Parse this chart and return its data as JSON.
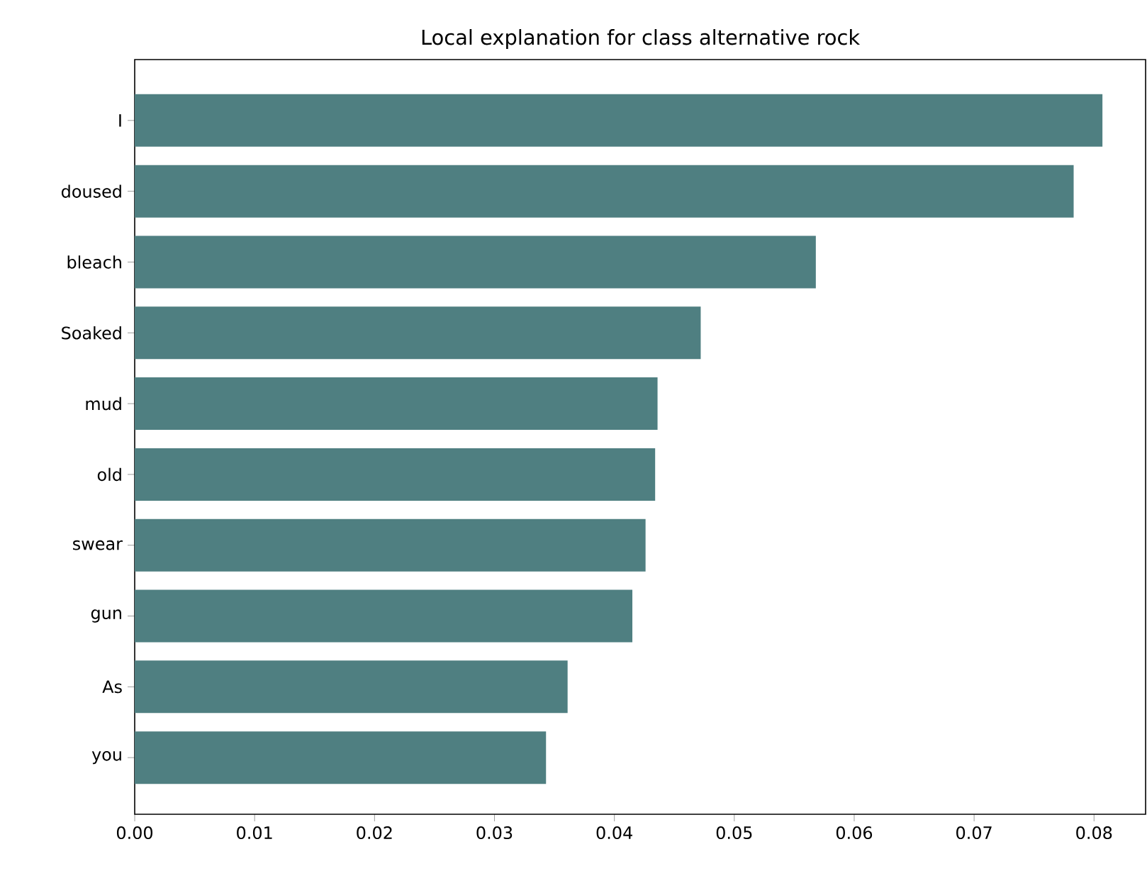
{
  "chart_data": {
    "type": "bar",
    "orientation": "horizontal",
    "title": "Local explanation for class alternative rock",
    "categories": [
      "I",
      "doused",
      "bleach",
      "Soaked",
      "mud",
      "old",
      "swear",
      "gun",
      "As",
      "you"
    ],
    "values": [
      0.0807,
      0.0783,
      0.0568,
      0.0472,
      0.0436,
      0.0434,
      0.0426,
      0.0415,
      0.0361,
      0.0343
    ],
    "color": "#4f7f81",
    "xlim": [
      0,
      0.0843
    ],
    "xticks": [
      {
        "value": 0,
        "label": "0.00"
      },
      {
        "value": 0.01,
        "label": "0.01"
      },
      {
        "value": 0.02,
        "label": "0.02"
      },
      {
        "value": 0.03,
        "label": "0.03"
      },
      {
        "value": 0.04,
        "label": "0.04"
      },
      {
        "value": 0.05,
        "label": "0.05"
      },
      {
        "value": 0.06,
        "label": "0.06"
      },
      {
        "value": 0.07,
        "label": "0.07"
      },
      {
        "value": 0.08,
        "label": "0.08"
      }
    ],
    "grid": false
  }
}
